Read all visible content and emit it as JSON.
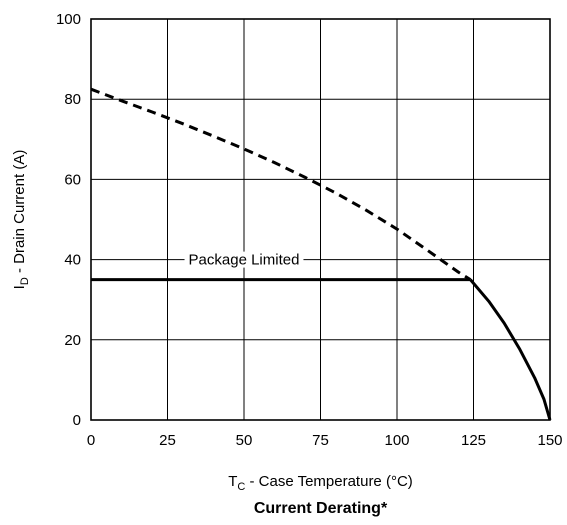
{
  "chart_data": {
    "type": "line",
    "title": "Current Derating*",
    "xlabel": {
      "main": "T",
      "sub": "C",
      "rest": " - Case Temperature (°C)"
    },
    "ylabel": {
      "main": "I",
      "sub": "D",
      "rest": " - Drain Current (A)"
    },
    "xlim": [
      0,
      150
    ],
    "ylim": [
      0,
      100
    ],
    "x_ticks": [
      "0",
      "25",
      "50",
      "75",
      "100",
      "125",
      "150"
    ],
    "y_ticks": [
      "0",
      "20",
      "40",
      "60",
      "80",
      "100"
    ],
    "grid": true,
    "annotation": "Package Limited",
    "series": [
      {
        "style": "dashed",
        "x": [
          0,
          10,
          20,
          30,
          40,
          50,
          60,
          70,
          80,
          90,
          100,
          110,
          120,
          124
        ],
        "y": [
          82.5,
          79.6,
          76.8,
          73.9,
          70.8,
          67.6,
          64.2,
          60.5,
          56.6,
          52.3,
          47.6,
          42.3,
          36.9,
          35
        ]
      },
      {
        "style": "solid",
        "x": [
          0,
          124
        ],
        "y": [
          35,
          35
        ]
      },
      {
        "style": "solid",
        "x": [
          124,
          130,
          135,
          140,
          145,
          148,
          150
        ],
        "y": [
          35,
          29.6,
          24.2,
          17.8,
          10.5,
          5.2,
          0
        ]
      }
    ]
  }
}
